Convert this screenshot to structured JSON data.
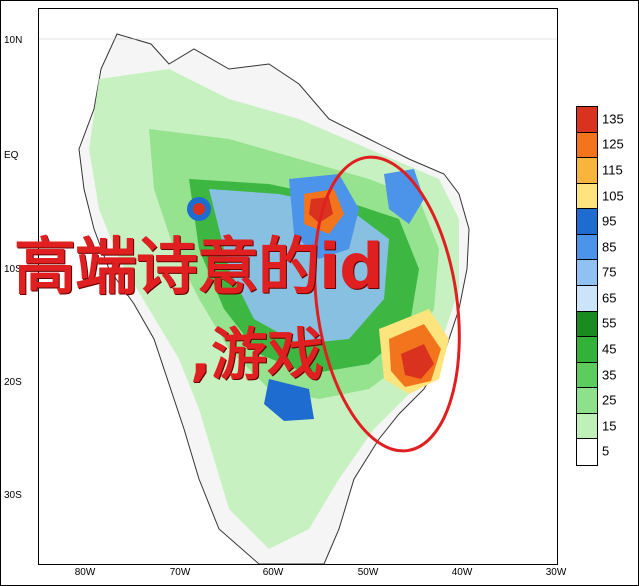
{
  "map": {
    "lat_labels": [
      "10N",
      "EQ",
      "10S",
      "20S",
      "30S"
    ],
    "lon_labels": [
      "80W",
      "70W",
      "60W",
      "50W",
      "40W",
      "30W"
    ]
  },
  "legend": {
    "values": [
      "135",
      "125",
      "115",
      "105",
      "95",
      "85",
      "75",
      "65",
      "55",
      "45",
      "35",
      "25",
      "15",
      "5"
    ],
    "colors": [
      "#d9331f",
      "#f2751d",
      "#f7b53d",
      "#fde47d",
      "#1f6cd1",
      "#4c93ea",
      "#8fc1f2",
      "#cbe4fa",
      "#1a8c1f",
      "#33b23a",
      "#5ccd5c",
      "#8fe08a",
      "#bff0b8",
      "#ffffff"
    ]
  },
  "overlay": {
    "line1": "高端诗意的id",
    "line2": ",游戏"
  },
  "annotation": {
    "ellipse_color": "#e02020"
  }
}
